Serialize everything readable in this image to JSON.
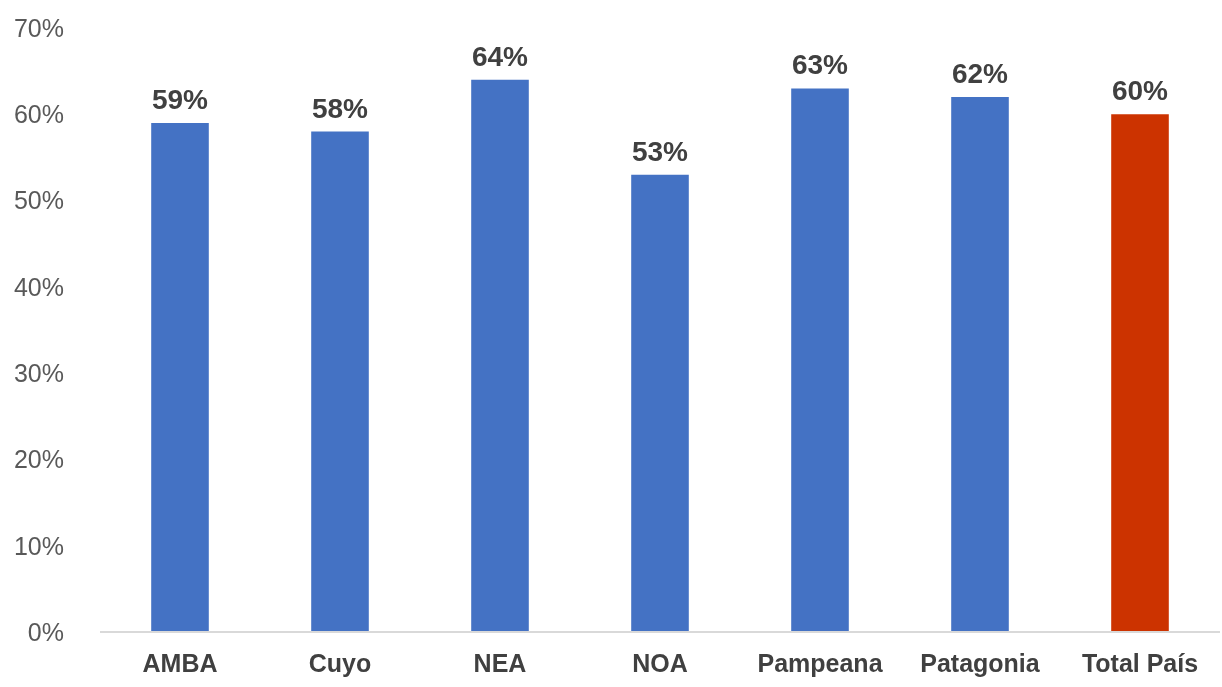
{
  "chart_data": {
    "type": "bar",
    "categories": [
      "AMBA",
      "Cuyo",
      "NEA",
      "NOA",
      "Pampeana",
      "Patagonia",
      "Total País"
    ],
    "values": [
      59,
      58,
      64,
      53,
      63,
      62,
      60
    ],
    "colors": [
      "#4472c4",
      "#4472c4",
      "#4472c4",
      "#4472c4",
      "#4472c4",
      "#4472c4",
      "#cc3300"
    ],
    "value_labels": [
      "59%",
      "58%",
      "64%",
      "53%",
      "63%",
      "62%",
      "60%"
    ],
    "ylim": [
      0,
      70
    ],
    "yticks": [
      {
        "value": 0,
        "label": "0%"
      },
      {
        "value": 10,
        "label": "10%"
      },
      {
        "value": 20,
        "label": "20%"
      },
      {
        "value": 30,
        "label": "30%"
      },
      {
        "value": 40,
        "label": "40%"
      },
      {
        "value": 50,
        "label": "50%"
      },
      {
        "value": 60,
        "label": "60%"
      },
      {
        "value": 70,
        "label": "70%"
      }
    ],
    "grid": false,
    "legend": false
  }
}
